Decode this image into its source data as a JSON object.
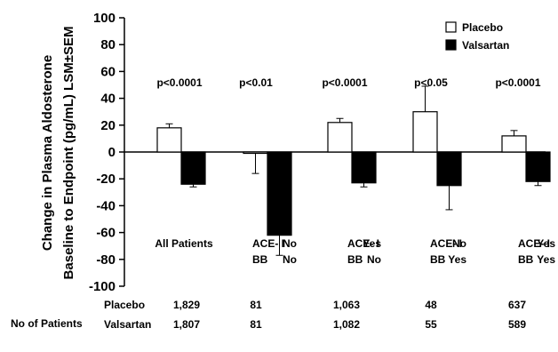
{
  "chart_data": {
    "type": "bar",
    "ylabel_line1": "Change in Plasma Aldosterone",
    "ylabel_line2": "Baseline to Endpoint (pg/mL) LSM±SEM",
    "ylim": [
      -100,
      100
    ],
    "yticks": [
      "100",
      "80",
      "60",
      "40",
      "20",
      "0",
      "-20",
      "-40",
      "-60",
      "-80",
      "-100"
    ],
    "legend_position": "top-right",
    "series": [
      {
        "name": "Placebo",
        "color": "#ffffff",
        "values": [
          18,
          -1,
          22,
          30,
          12
        ],
        "sem": [
          3,
          15,
          3,
          19,
          4
        ]
      },
      {
        "name": "Valsartan",
        "color": "#000000",
        "values": [
          -24,
          -62,
          -23,
          -25,
          -22
        ],
        "sem": [
          2,
          15,
          3,
          18,
          3
        ]
      }
    ],
    "groups": [
      {
        "p_value": "p<0.0001",
        "label_top_left": "All Patients",
        "label_top_right": "",
        "label_bottom_left": "",
        "label_bottom_right": ""
      },
      {
        "p_value": "p<0.01",
        "label_top_left": "ACE- I",
        "label_top_right": "No",
        "label_bottom_left": "BB",
        "label_bottom_right": "No"
      },
      {
        "p_value": "p<0.0001",
        "label_top_left": "ACE- I",
        "label_top_right": "Yes",
        "label_bottom_left": "BB",
        "label_bottom_right": "No"
      },
      {
        "p_value": "p<0.05",
        "label_top_left": "ACE- I",
        "label_top_right": "No",
        "label_bottom_left": "BB",
        "label_bottom_right": "Yes"
      },
      {
        "p_value": "p<0.0001",
        "label_top_left": "ACE- I",
        "label_top_right": "Yes",
        "label_bottom_left": "BB",
        "label_bottom_right": "Yes"
      }
    ]
  },
  "patients_table": {
    "title": "No of Patients",
    "rows": [
      {
        "label": "Placebo",
        "counts": [
          "1,829",
          "81",
          "1,063",
          "48",
          "637"
        ]
      },
      {
        "label": "Valsartan",
        "counts": [
          "1,807",
          "81",
          "1,082",
          "55",
          "589"
        ]
      }
    ]
  }
}
